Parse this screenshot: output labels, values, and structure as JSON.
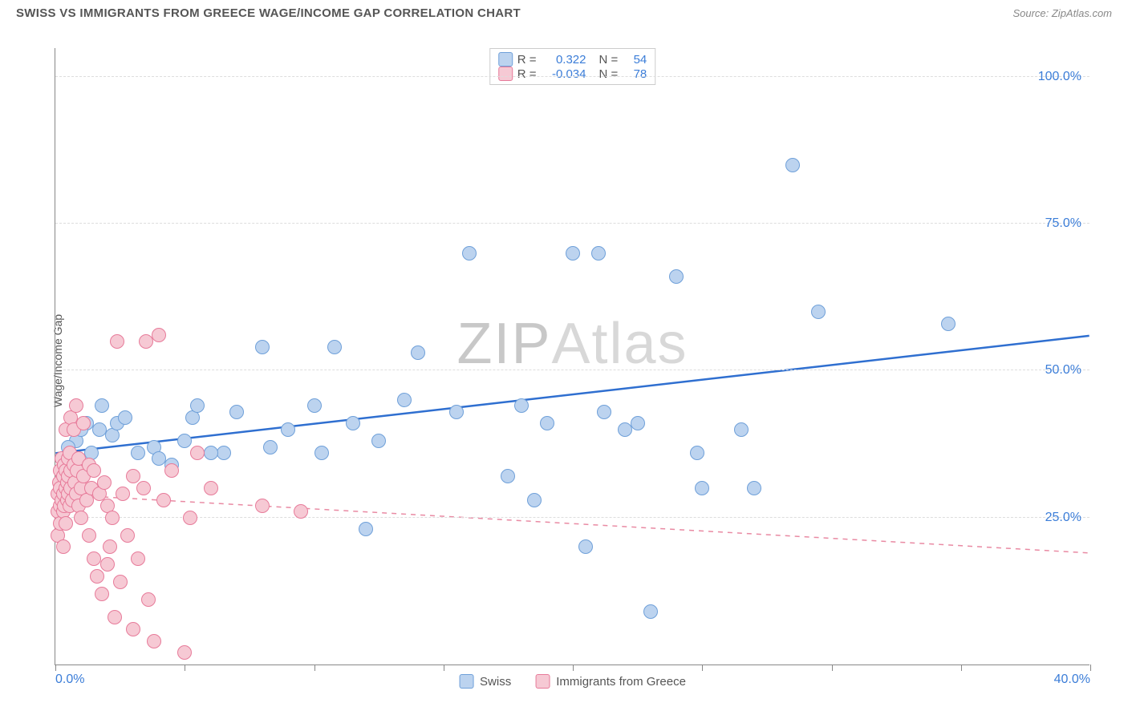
{
  "header": {
    "title": "SWISS VS IMMIGRANTS FROM GREECE WAGE/INCOME GAP CORRELATION CHART",
    "source": "Source: ZipAtlas.com"
  },
  "watermark": {
    "zip": "ZIP",
    "atlas": "Atlas"
  },
  "chart": {
    "type": "scatter",
    "ylabel": "Wage/Income Gap",
    "background_color": "#ffffff",
    "grid_color": "#dddddd",
    "axis_color": "#888888",
    "tick_label_color": "#3b7dd8",
    "xlim": [
      0,
      40
    ],
    "ylim": [
      0,
      105
    ],
    "x_ticks": [
      0,
      5,
      10,
      15,
      20,
      25,
      30,
      35,
      40
    ],
    "x_tick_labels": {
      "0": "0.0%",
      "40": "40.0%"
    },
    "y_gridlines": [
      25,
      50,
      75,
      100
    ],
    "y_tick_labels": {
      "25": "25.0%",
      "50": "50.0%",
      "75": "75.0%",
      "100": "100.0%"
    },
    "point_radius": 9,
    "point_border_width": 1.2,
    "series": [
      {
        "name": "Swiss",
        "fill": "#bcd3ef",
        "stroke": "#6fa0d9",
        "r_label": "R =",
        "r_value": "0.322",
        "n_label": "N =",
        "n_value": "54",
        "trend": {
          "y_at_x0": 36,
          "y_at_xmax": 56,
          "stroke": "#2f6fd0",
          "width": 2.5,
          "dash": "none"
        },
        "points": [
          [
            0.6,
            29
          ],
          [
            0.8,
            38
          ],
          [
            1.0,
            33
          ],
          [
            1.2,
            41
          ],
          [
            1.4,
            36
          ],
          [
            1.7,
            40
          ],
          [
            1.8,
            44
          ],
          [
            2.2,
            39
          ],
          [
            2.4,
            41
          ],
          [
            2.7,
            42
          ],
          [
            3.2,
            36
          ],
          [
            3.8,
            37
          ],
          [
            4.5,
            34
          ],
          [
            5.0,
            38
          ],
          [
            5.3,
            42
          ],
          [
            5.5,
            44
          ],
          [
            6.5,
            36
          ],
          [
            7.0,
            43
          ],
          [
            8.0,
            54
          ],
          [
            8.3,
            37
          ],
          [
            9.0,
            40
          ],
          [
            10.0,
            44
          ],
          [
            10.3,
            36
          ],
          [
            10.8,
            54
          ],
          [
            11.5,
            41
          ],
          [
            12.0,
            23
          ],
          [
            12.5,
            38
          ],
          [
            13.5,
            45
          ],
          [
            14.0,
            53
          ],
          [
            15.5,
            43
          ],
          [
            16.0,
            70
          ],
          [
            17.5,
            32
          ],
          [
            18.0,
            44
          ],
          [
            18.5,
            28
          ],
          [
            19.0,
            41
          ],
          [
            20.0,
            70
          ],
          [
            20.5,
            20
          ],
          [
            21.0,
            70
          ],
          [
            21.2,
            43
          ],
          [
            22.0,
            40
          ],
          [
            22.5,
            41
          ],
          [
            24.0,
            66
          ],
          [
            24.8,
            36
          ],
          [
            25.0,
            30
          ],
          [
            26.5,
            40
          ],
          [
            27.0,
            30
          ],
          [
            28.5,
            85
          ],
          [
            29.5,
            60
          ],
          [
            34.5,
            58
          ],
          [
            6.0,
            36
          ],
          [
            4.0,
            35
          ],
          [
            0.5,
            37
          ],
          [
            1.0,
            40
          ],
          [
            23.0,
            9
          ]
        ]
      },
      {
        "name": "Immigrants from Greece",
        "fill": "#f6c9d4",
        "stroke": "#e77b9a",
        "r_label": "R =",
        "r_value": "-0.034",
        "n_label": "N =",
        "n_value": "78",
        "trend": {
          "y_at_x0": 29,
          "y_at_xmax": 19,
          "stroke": "#e98aa3",
          "width": 1.5,
          "dash": "6,6"
        },
        "points": [
          [
            0.1,
            22
          ],
          [
            0.1,
            26
          ],
          [
            0.1,
            29
          ],
          [
            0.15,
            31
          ],
          [
            0.2,
            24
          ],
          [
            0.2,
            27
          ],
          [
            0.2,
            30
          ],
          [
            0.2,
            33
          ],
          [
            0.25,
            28
          ],
          [
            0.25,
            35
          ],
          [
            0.3,
            20
          ],
          [
            0.3,
            26
          ],
          [
            0.3,
            29
          ],
          [
            0.3,
            32
          ],
          [
            0.35,
            34
          ],
          [
            0.35,
            27
          ],
          [
            0.4,
            30
          ],
          [
            0.4,
            33
          ],
          [
            0.4,
            24
          ],
          [
            0.4,
            40
          ],
          [
            0.45,
            28
          ],
          [
            0.45,
            31
          ],
          [
            0.5,
            35
          ],
          [
            0.5,
            29
          ],
          [
            0.5,
            32
          ],
          [
            0.55,
            36
          ],
          [
            0.55,
            27
          ],
          [
            0.6,
            33
          ],
          [
            0.6,
            30
          ],
          [
            0.6,
            42
          ],
          [
            0.65,
            28
          ],
          [
            0.7,
            34
          ],
          [
            0.7,
            40
          ],
          [
            0.75,
            31
          ],
          [
            0.8,
            29
          ],
          [
            0.8,
            44
          ],
          [
            0.85,
            33
          ],
          [
            0.9,
            27
          ],
          [
            0.9,
            35
          ],
          [
            1.0,
            30
          ],
          [
            1.0,
            25
          ],
          [
            1.1,
            41
          ],
          [
            1.1,
            32
          ],
          [
            1.2,
            28
          ],
          [
            1.3,
            34
          ],
          [
            1.3,
            22
          ],
          [
            1.4,
            30
          ],
          [
            1.5,
            33
          ],
          [
            1.5,
            18
          ],
          [
            1.6,
            15
          ],
          [
            1.7,
            29
          ],
          [
            1.8,
            12
          ],
          [
            1.9,
            31
          ],
          [
            2.0,
            17
          ],
          [
            2.0,
            27
          ],
          [
            2.1,
            20
          ],
          [
            2.2,
            25
          ],
          [
            2.3,
            8
          ],
          [
            2.4,
            55
          ],
          [
            2.5,
            14
          ],
          [
            2.6,
            29
          ],
          [
            2.8,
            22
          ],
          [
            3.0,
            6
          ],
          [
            3.2,
            18
          ],
          [
            3.4,
            30
          ],
          [
            3.5,
            55
          ],
          [
            3.6,
            11
          ],
          [
            3.8,
            4
          ],
          [
            4.0,
            56
          ],
          [
            4.2,
            28
          ],
          [
            4.5,
            33
          ],
          [
            5.0,
            2
          ],
          [
            5.2,
            25
          ],
          [
            5.5,
            36
          ],
          [
            6.0,
            30
          ],
          [
            8.0,
            27
          ],
          [
            9.5,
            26
          ],
          [
            3.0,
            32
          ]
        ]
      }
    ],
    "legend": {
      "items": [
        {
          "label": "Swiss",
          "fill": "#bcd3ef",
          "stroke": "#6fa0d9"
        },
        {
          "label": "Immigrants from Greece",
          "fill": "#f6c9d4",
          "stroke": "#e77b9a"
        }
      ]
    }
  }
}
